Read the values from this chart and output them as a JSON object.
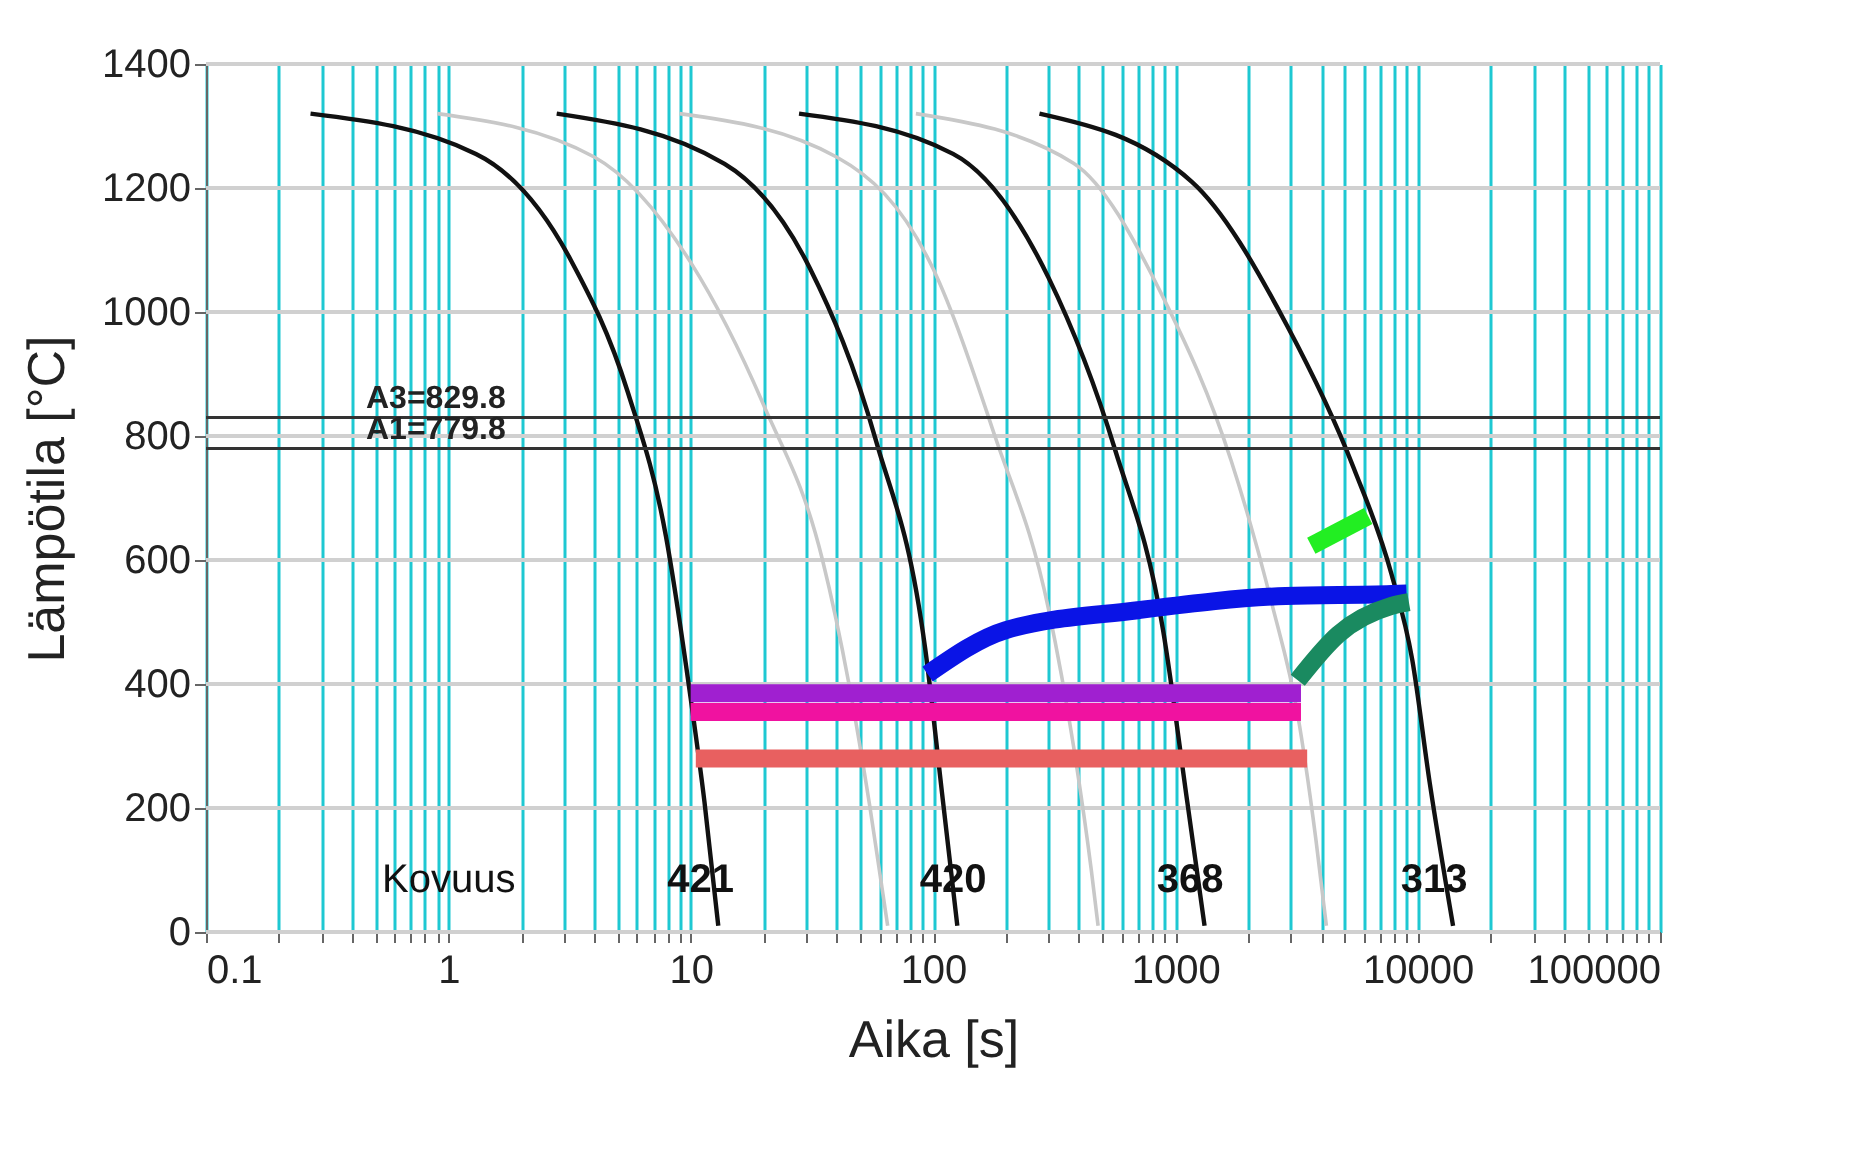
{
  "chart_data": {
    "type": "line",
    "xlabel": "Aika [s]",
    "ylabel": "Lämpötila [°C]",
    "log": "x",
    "grid": true,
    "xlim": [
      0.1,
      100000
    ],
    "ylim": [
      0,
      1400
    ],
    "xticks": [
      0.1,
      {
        "value": 0.2,
        "label": null
      },
      {
        "value": 0.3,
        "label": null
      },
      {
        "value": 0.4,
        "label": null
      },
      {
        "value": 0.5,
        "label": null
      },
      {
        "value": 0.6,
        "label": null
      },
      {
        "value": 0.7,
        "label": null
      },
      {
        "value": 0.8,
        "label": null
      },
      {
        "value": 0.9,
        "label": null
      },
      1,
      {
        "value": 2,
        "label": null
      },
      {
        "value": 3,
        "label": null
      },
      {
        "value": 4,
        "label": null
      },
      {
        "value": 5,
        "label": null
      },
      {
        "value": 6,
        "label": null
      },
      {
        "value": 7,
        "label": null
      },
      {
        "value": 8,
        "label": null
      },
      {
        "value": 9,
        "label": null
      },
      10,
      {
        "value": 20,
        "label": null
      },
      {
        "value": 30,
        "label": null
      },
      {
        "value": 40,
        "label": null
      },
      {
        "value": 50,
        "label": null
      },
      {
        "value": 60,
        "label": null
      },
      {
        "value": 70,
        "label": null
      },
      {
        "value": 80,
        "label": null
      },
      {
        "value": 90,
        "label": null
      },
      100,
      {
        "value": 200,
        "label": null
      },
      {
        "value": 300,
        "label": null
      },
      {
        "value": 400,
        "label": null
      },
      {
        "value": 500,
        "label": null
      },
      {
        "value": 600,
        "label": null
      },
      {
        "value": 700,
        "label": null
      },
      {
        "value": 800,
        "label": null
      },
      {
        "value": 900,
        "label": null
      },
      1000,
      {
        "value": 2000,
        "label": null
      },
      {
        "value": 3000,
        "label": null
      },
      {
        "value": 4000,
        "label": null
      },
      {
        "value": 5000,
        "label": null
      },
      {
        "value": 6000,
        "label": null
      },
      {
        "value": 7000,
        "label": null
      },
      {
        "value": 8000,
        "label": null
      },
      {
        "value": 9000,
        "label": null
      },
      10000,
      {
        "value": 20000,
        "label": null
      },
      {
        "value": 30000,
        "label": null
      },
      {
        "value": 40000,
        "label": null
      },
      {
        "value": 50000,
        "label": null
      },
      {
        "value": 60000,
        "label": null
      },
      {
        "value": 70000,
        "label": null
      },
      {
        "value": 80000,
        "label": null
      },
      {
        "value": 90000,
        "label": null
      },
      100000
    ],
    "yticks": [
      0,
      200,
      400,
      600,
      800,
      1000,
      1200,
      1400
    ],
    "series": [
      {
        "color": "#c8c8c8",
        "x": [
          0.9,
          4,
          10,
          20,
          35,
          45,
          55,
          65
        ],
        "values": [
          1320,
          1250,
          1080,
          850,
          600,
          400,
          200,
          10
        ]
      },
      {
        "color": "#c8c8c8",
        "x": [
          9,
          40,
          100,
          180,
          300,
          380,
          450,
          480
        ],
        "values": [
          1320,
          1250,
          1070,
          800,
          520,
          300,
          100,
          10
        ]
      },
      {
        "color": "#c8c8c8",
        "x": [
          85,
          380,
          900,
          1700,
          2500,
          3200,
          3800,
          4200
        ],
        "values": [
          1320,
          1240,
          1020,
          760,
          530,
          350,
          150,
          10
        ]
      },
      {
        "color": "#111111",
        "x": [
          0.27,
          1.3,
          3.2,
          5.5,
          7.9,
          10,
          11.4,
          13
        ],
        "values": [
          1320,
          1255,
          1084,
          871,
          639,
          377,
          210,
          10
        ]
      },
      {
        "color": "#111111",
        "x": [
          2.8,
          13.8,
          31,
          58,
          93,
          110,
          126
        ],
        "values": [
          1320,
          1239,
          1071,
          794,
          455,
          210,
          10
        ]
      },
      {
        "color": "#111111",
        "x": [
          28,
          121,
          300,
          565,
          890,
          1120,
          1320
        ],
        "values": [
          1320,
          1255,
          1055,
          777,
          487,
          210,
          10
        ]
      },
      {
        "color": "#111111",
        "x": [
          275,
          1170,
          2900,
          5450,
          7800,
          9500,
          11200,
          14000
        ],
        "values": [
          1320,
          1210,
          977,
          748,
          577,
          439,
          242,
          10
        ]
      },
      {
        "color": "#a020d0",
        "x": [
          10,
          3300
        ],
        "values": [
          385,
          385
        ]
      },
      {
        "color": "#f012a0",
        "x": [
          10,
          3300
        ],
        "values": [
          355,
          355
        ]
      },
      {
        "color": "#e86060",
        "x": [
          10.5,
          3500
        ],
        "values": [
          280,
          280
        ]
      },
      {
        "color": "#0a14e6",
        "x": [
          95,
          200,
          700,
          2850,
          7800,
          9000
        ],
        "values": [
          416,
          487,
          519,
          542,
          545,
          546
        ]
      },
      {
        "color": "#1a8a60",
        "x": [
          3200,
          4700,
          7800,
          9200
        ],
        "values": [
          406,
          480,
          526,
          532
        ]
      },
      {
        "color": "#22ee22",
        "x": [
          3640,
          6250
        ],
        "values": [
          623,
          671
        ]
      }
    ],
    "ref_lines": [
      {
        "axis": "y",
        "value": 829.8,
        "label": "A3=829.8",
        "color": "#333333"
      },
      {
        "axis": "y",
        "value": 779.8,
        "label": "A1=779.8",
        "color": "#333333"
      }
    ],
    "annotations": [
      "Kovuus",
      {
        "text": "421",
        "x": 11,
        "y": 84
      },
      {
        "text": "420",
        "x": 121,
        "y": 84
      },
      {
        "text": "368",
        "x": 1150,
        "y": 84
      },
      {
        "text": "313",
        "x": 11700,
        "y": 84
      }
    ]
  }
}
